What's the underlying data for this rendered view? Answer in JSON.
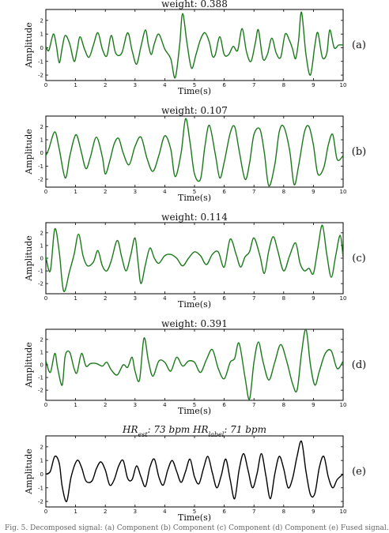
{
  "caption": "Fig. 5.  Decomposed signal: (a) Component (b) Component (c) Component (d) Component (e) Fused signal.",
  "chart_data": [
    {
      "type": "line",
      "panel_label": "(a)",
      "title": "weight: 0.388",
      "xlabel": "Time(s)",
      "ylabel": "Amplitude",
      "xlim": [
        0,
        10
      ],
      "ylim": [
        -2.4,
        2.8
      ],
      "xticks": [
        "0",
        "1",
        "2",
        "3",
        "4",
        "5",
        "6",
        "7",
        "8",
        "9",
        "10"
      ],
      "yticks": [
        "-2",
        "-1",
        "0",
        "1",
        "2"
      ],
      "color": "#1a7a1a",
      "x": [
        0,
        0.1,
        0.25,
        0.35,
        0.45,
        0.55,
        0.65,
        0.8,
        0.95,
        1.05,
        1.15,
        1.3,
        1.45,
        1.6,
        1.75,
        1.9,
        2.05,
        2.2,
        2.35,
        2.55,
        2.75,
        2.9,
        3.05,
        3.2,
        3.35,
        3.45,
        3.55,
        3.65,
        3.8,
        4.0,
        4.2,
        4.35,
        4.5,
        4.6,
        4.75,
        4.9,
        5.05,
        5.2,
        5.35,
        5.5,
        5.6,
        5.7,
        5.85,
        6.0,
        6.15,
        6.3,
        6.45,
        6.6,
        6.75,
        6.9,
        7.05,
        7.15,
        7.3,
        7.45,
        7.6,
        7.75,
        7.9,
        8.05,
        8.2,
        8.3,
        8.4,
        8.5,
        8.6,
        8.75,
        8.9,
        9.05,
        9.15,
        9.3,
        9.45,
        9.55,
        9.7,
        9.85,
        10.0
      ],
      "y": [
        0.1,
        -0.2,
        1.0,
        0.2,
        -1.1,
        0.0,
        0.9,
        0.3,
        -1.0,
        -0.2,
        0.8,
        -0.1,
        -0.7,
        0.2,
        1.1,
        -0.1,
        -0.6,
        0.9,
        -0.4,
        -0.4,
        1.1,
        -0.2,
        -1.2,
        0.1,
        1.3,
        0.2,
        -0.5,
        0.3,
        1.0,
        -0.1,
        -0.8,
        -2.2,
        0.2,
        2.5,
        0.3,
        -1.5,
        -0.5,
        0.6,
        1.1,
        0.4,
        -0.6,
        -0.5,
        0.8,
        -0.5,
        -0.5,
        0.1,
        -0.2,
        1.4,
        -0.3,
        -1.0,
        0.4,
        1.3,
        -0.8,
        -0.5,
        0.7,
        -0.4,
        -0.7,
        1.0,
        0.5,
        -0.1,
        -0.8,
        0.5,
        2.6,
        -0.5,
        -2.0,
        0.2,
        1.1,
        -0.7,
        -0.4,
        1.3,
        0.0,
        0.2,
        0.2
      ]
    },
    {
      "type": "line",
      "panel_label": "(b)",
      "title": "weight: 0.107",
      "xlabel": "Time(s)",
      "ylabel": "Amplitude",
      "xlim": [
        0,
        10
      ],
      "ylim": [
        -2.6,
        2.8
      ],
      "xticks": [
        "0",
        "1",
        "2",
        "3",
        "4",
        "5",
        "6",
        "7",
        "8",
        "9",
        "10"
      ],
      "yticks": [
        "-2",
        "-1",
        "0",
        "1",
        "2"
      ],
      "color": "#1a7a1a",
      "x": [
        0,
        0.1,
        0.3,
        0.45,
        0.65,
        0.8,
        0.95,
        1.05,
        1.2,
        1.35,
        1.5,
        1.7,
        1.9,
        2.0,
        2.15,
        2.3,
        2.45,
        2.6,
        2.8,
        3.0,
        3.2,
        3.4,
        3.6,
        3.8,
        4.0,
        4.2,
        4.35,
        4.55,
        4.7,
        4.85,
        5.0,
        5.2,
        5.35,
        5.5,
        5.7,
        5.85,
        6.0,
        6.2,
        6.35,
        6.5,
        6.7,
        6.85,
        7.0,
        7.2,
        7.35,
        7.5,
        7.7,
        7.85,
        8.0,
        8.2,
        8.35,
        8.5,
        8.7,
        8.85,
        9.0,
        9.15,
        9.35,
        9.5,
        9.65,
        9.8,
        10.0
      ],
      "y": [
        -0.2,
        0.3,
        1.6,
        0.3,
        -1.9,
        -0.3,
        1.1,
        1.3,
        0.0,
        -1.2,
        -0.3,
        1.2,
        -0.3,
        -1.6,
        -0.6,
        0.7,
        1.1,
        0.0,
        -0.9,
        0.5,
        1.2,
        -0.4,
        -1.4,
        -0.2,
        1.3,
        0.3,
        -1.8,
        0.0,
        2.6,
        0.8,
        -1.6,
        -2.0,
        0.5,
        2.1,
        -0.1,
        -1.9,
        -0.7,
        1.5,
        2.0,
        0.2,
        -2.0,
        -0.8,
        1.4,
        1.8,
        0.0,
        -2.5,
        -0.9,
        1.6,
        2.0,
        0.2,
        -2.4,
        -1.0,
        1.6,
        2.0,
        0.6,
        -1.6,
        -1.1,
        0.6,
        1.4,
        -0.5,
        -0.2
      ]
    },
    {
      "type": "line",
      "panel_label": "(c)",
      "title": "weight: 0.114",
      "xlabel": "Time(s)",
      "ylabel": "Amplitude",
      "xlim": [
        0,
        10
      ],
      "ylim": [
        -2.8,
        2.8
      ],
      "xticks": [
        "0",
        "1",
        "2",
        "3",
        "4",
        "5",
        "6",
        "7",
        "8",
        "9",
        "10"
      ],
      "yticks": [
        "-2",
        "-1",
        "0",
        "1",
        "2"
      ],
      "color": "#1a7a1a",
      "x": [
        0,
        0.15,
        0.3,
        0.45,
        0.6,
        0.8,
        0.95,
        1.1,
        1.25,
        1.4,
        1.6,
        1.75,
        1.9,
        2.05,
        2.2,
        2.4,
        2.55,
        2.7,
        2.85,
        3.0,
        3.1,
        3.2,
        3.35,
        3.5,
        3.65,
        3.8,
        4.0,
        4.2,
        4.4,
        4.6,
        4.8,
        5.0,
        5.2,
        5.4,
        5.6,
        5.8,
        6.0,
        6.2,
        6.4,
        6.55,
        6.7,
        6.85,
        7.0,
        7.2,
        7.35,
        7.5,
        7.65,
        7.8,
        8.0,
        8.2,
        8.4,
        8.55,
        8.7,
        8.85,
        9.0,
        9.15,
        9.3,
        9.45,
        9.6,
        9.75,
        9.9,
        10.0
      ],
      "y": [
        0.1,
        -1.0,
        2.3,
        0.5,
        -2.6,
        -1.0,
        0.3,
        1.9,
        0.2,
        -0.6,
        -0.3,
        0.6,
        -0.6,
        -1.0,
        -0.2,
        1.4,
        0.1,
        -1.0,
        0.2,
        1.6,
        -0.3,
        -2.0,
        -0.5,
        0.8,
        0.0,
        -0.4,
        0.2,
        0.3,
        0.0,
        -0.6,
        0.0,
        0.5,
        0.2,
        -0.5,
        0.3,
        0.5,
        -0.7,
        1.5,
        0.3,
        -0.7,
        0.1,
        0.5,
        1.6,
        0.2,
        -1.2,
        0.6,
        1.7,
        0.6,
        -1.0,
        0.2,
        1.2,
        -0.4,
        -1.0,
        -0.8,
        -1.2,
        0.8,
        2.6,
        0.3,
        -1.5,
        0.2,
        1.8,
        0.0
      ]
    },
    {
      "type": "line",
      "panel_label": "(d)",
      "title": "weight: 0.391",
      "xlabel": "Time(s)",
      "ylabel": "Amplitude",
      "xlim": [
        0,
        10
      ],
      "ylim": [
        -2.8,
        2.8
      ],
      "xticks": [
        "0",
        "1",
        "2",
        "3",
        "4",
        "5",
        "6",
        "7",
        "8",
        "9",
        "10"
      ],
      "yticks": [
        "-2",
        "-1",
        "0",
        "1",
        "2"
      ],
      "color": "#1a7a1a",
      "x": [
        0,
        0.15,
        0.3,
        0.4,
        0.55,
        0.65,
        0.8,
        0.95,
        1.05,
        1.2,
        1.35,
        1.5,
        1.7,
        1.9,
        2.05,
        2.2,
        2.4,
        2.6,
        2.75,
        2.9,
        3.0,
        3.15,
        3.3,
        3.45,
        3.6,
        3.8,
        4.0,
        4.2,
        4.4,
        4.6,
        4.8,
        5.0,
        5.2,
        5.4,
        5.6,
        5.8,
        6.0,
        6.2,
        6.35,
        6.5,
        6.7,
        6.85,
        7.0,
        7.15,
        7.3,
        7.5,
        7.7,
        7.9,
        8.1,
        8.3,
        8.45,
        8.6,
        8.75,
        8.9,
        9.05,
        9.2,
        9.4,
        9.6,
        9.8,
        10.0
      ],
      "y": [
        0.3,
        -0.6,
        0.9,
        -0.3,
        -1.6,
        0.7,
        1.0,
        -0.3,
        -0.6,
        0.9,
        -0.1,
        0.1,
        0.1,
        -0.1,
        0.2,
        -0.4,
        -0.8,
        0.0,
        -0.2,
        0.6,
        -0.5,
        -1.2,
        2.1,
        0.3,
        -0.9,
        0.3,
        0.2,
        -0.5,
        0.6,
        -0.1,
        0.3,
        0.2,
        -0.6,
        0.4,
        1.2,
        -0.3,
        -1.1,
        0.2,
        0.5,
        1.7,
        -1.0,
        -2.7,
        0.2,
        1.8,
        0.3,
        -1.2,
        0.2,
        1.6,
        0.3,
        -1.5,
        -2.0,
        0.9,
        2.8,
        0.0,
        -1.6,
        -0.5,
        0.9,
        1.1,
        -0.3,
        0.3
      ]
    },
    {
      "type": "line",
      "panel_label": "(e)",
      "title_parts": {
        "est_prefix": "HR",
        "est_sub": "est",
        "est_value": ": 73 bpm",
        "label_prefix": "HR",
        "label_sub": "label",
        "label_value": ": 71 bpm"
      },
      "xlabel": "Time(s)",
      "ylabel": "Amplitude",
      "xlim": [
        0,
        10
      ],
      "ylim": [
        -2.4,
        2.8
      ],
      "xticks": [
        "0",
        "1",
        "2",
        "3",
        "4",
        "5",
        "6",
        "7",
        "8",
        "9",
        "10"
      ],
      "yticks": [
        "-2",
        "-1",
        "0",
        "1",
        "2"
      ],
      "color": "#000000",
      "x": [
        0,
        0.15,
        0.3,
        0.45,
        0.55,
        0.7,
        0.85,
        1.05,
        1.2,
        1.35,
        1.55,
        1.7,
        1.85,
        2.0,
        2.15,
        2.3,
        2.45,
        2.6,
        2.75,
        2.9,
        3.05,
        3.2,
        3.35,
        3.5,
        3.65,
        3.8,
        3.95,
        4.1,
        4.25,
        4.4,
        4.55,
        4.7,
        4.85,
        5.0,
        5.15,
        5.3,
        5.45,
        5.6,
        5.75,
        5.9,
        6.05,
        6.2,
        6.35,
        6.5,
        6.65,
        6.8,
        6.95,
        7.1,
        7.25,
        7.4,
        7.55,
        7.7,
        7.85,
        8.0,
        8.15,
        8.3,
        8.45,
        8.6,
        8.75,
        8.9,
        9.05,
        9.2,
        9.35,
        9.5,
        9.65,
        9.8,
        10.0
      ],
      "y": [
        0.0,
        0.2,
        1.3,
        0.8,
        -0.9,
        -2.0,
        -0.2,
        1.0,
        0.5,
        -0.5,
        -0.5,
        0.4,
        0.9,
        0.3,
        -0.8,
        -0.4,
        0.6,
        1.0,
        -0.3,
        -0.4,
        0.6,
        -0.2,
        -0.9,
        0.5,
        1.1,
        -0.2,
        -0.8,
        0.3,
        1.0,
        0.2,
        -0.6,
        0.2,
        1.1,
        -0.2,
        -0.7,
        0.4,
        1.3,
        0.1,
        -1.0,
        -0.1,
        1.1,
        -0.4,
        -1.8,
        0.3,
        1.5,
        0.3,
        -1.0,
        0.0,
        1.5,
        -0.1,
        -1.8,
        0.0,
        1.3,
        0.4,
        -1.0,
        -0.3,
        1.3,
        2.4,
        0.2,
        -1.5,
        -1.4,
        0.5,
        1.3,
        -0.2,
        -1.0,
        -0.4,
        0.0
      ]
    }
  ]
}
